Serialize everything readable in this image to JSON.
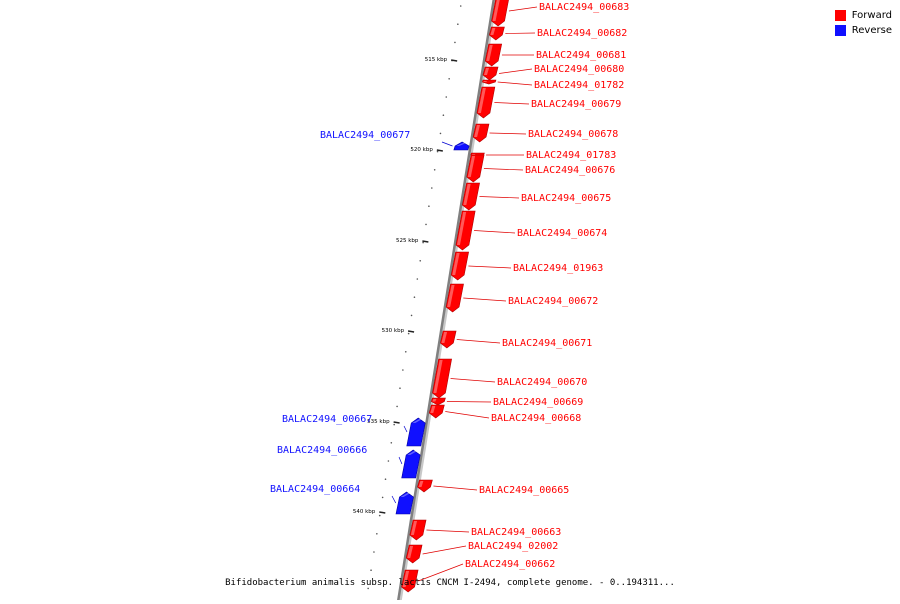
{
  "legend": {
    "forward": {
      "label": "Forward",
      "color": "#ff0000"
    },
    "reverse": {
      "label": "Reverse",
      "color": "#1010ff"
    }
  },
  "caption": "Bifidobacterium animalis subsp. lactis CNCM I-2494, complete genome. - 0..194311...",
  "axis": {
    "color": "#808080",
    "ticks": [
      {
        "label": "515 kbp"
      },
      {
        "label": "520 kbp"
      },
      {
        "label": "525 kbp"
      },
      {
        "label": "530 kbp"
      },
      {
        "label": "535 kbp"
      },
      {
        "label": "540 kbp"
      }
    ]
  },
  "genes": [
    {
      "name": "BALAC2494_00683",
      "strand": "forward"
    },
    {
      "name": "BALAC2494_00682",
      "strand": "forward"
    },
    {
      "name": "BALAC2494_00681",
      "strand": "forward"
    },
    {
      "name": "BALAC2494_00680",
      "strand": "forward"
    },
    {
      "name": "BALAC2494_01782",
      "strand": "forward"
    },
    {
      "name": "BALAC2494_00679",
      "strand": "forward"
    },
    {
      "name": "BALAC2494_00678",
      "strand": "forward"
    },
    {
      "name": "BALAC2494_00677",
      "strand": "reverse"
    },
    {
      "name": "BALAC2494_01783",
      "strand": "forward"
    },
    {
      "name": "BALAC2494_00676",
      "strand": "forward"
    },
    {
      "name": "BALAC2494_00675",
      "strand": "forward"
    },
    {
      "name": "BALAC2494_00674",
      "strand": "forward"
    },
    {
      "name": "BALAC2494_01963",
      "strand": "forward"
    },
    {
      "name": "BALAC2494_00672",
      "strand": "forward"
    },
    {
      "name": "BALAC2494_00671",
      "strand": "forward"
    },
    {
      "name": "BALAC2494_00670",
      "strand": "forward"
    },
    {
      "name": "BALAC2494_00669",
      "strand": "forward"
    },
    {
      "name": "BALAC2494_00668",
      "strand": "forward"
    },
    {
      "name": "BALAC2494_00667",
      "strand": "reverse"
    },
    {
      "name": "BALAC2494_00666",
      "strand": "reverse"
    },
    {
      "name": "BALAC2494_00665",
      "strand": "forward"
    },
    {
      "name": "BALAC2494_00664",
      "strand": "reverse"
    },
    {
      "name": "BALAC2494_00663",
      "strand": "forward"
    },
    {
      "name": "BALAC2494_02002",
      "strand": "forward"
    },
    {
      "name": "BALAC2494_00662",
      "strand": "forward"
    }
  ]
}
